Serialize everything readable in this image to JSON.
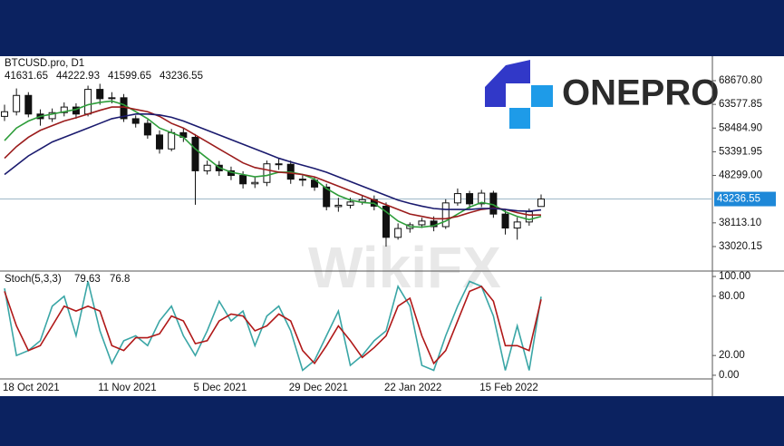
{
  "logo": "ONEPRO",
  "watermark": "WikiFX",
  "chart_data": [
    {
      "type": "candlestick",
      "title": "BTCUSD.pro, D1",
      "categories": [
        "18 Oct 2021",
        null,
        null,
        null,
        null,
        null,
        null,
        null,
        "11 Nov 2021",
        null,
        null,
        null,
        null,
        null,
        null,
        null,
        "5 Dec 2021",
        null,
        null,
        null,
        null,
        null,
        null,
        null,
        "29 Dec 2021",
        null,
        null,
        null,
        null,
        null,
        null,
        null,
        "22 Jan 2022",
        null,
        null,
        null,
        null,
        null,
        null,
        null,
        "15 Feb 2022",
        null,
        null,
        null,
        null,
        null
      ],
      "open": [
        61000,
        62000,
        65500,
        61500,
        60500,
        61800,
        63000,
        61500,
        66800,
        64800,
        65000,
        60500,
        59500,
        57000,
        54000,
        57500,
        56500,
        49300,
        50500,
        49300,
        48300,
        46500,
        46800,
        50800,
        50700,
        47500,
        47300,
        45800,
        41600,
        41900,
        42600,
        43100,
        41700,
        35000,
        36900,
        37700,
        38500,
        37300,
        42400,
        44400,
        42200,
        44500,
        40000,
        37000,
        38300,
        41631.65
      ],
      "high": [
        63500,
        67000,
        66200,
        62500,
        62700,
        64000,
        63800,
        67600,
        68000,
        66200,
        65800,
        61200,
        60300,
        58000,
        58300,
        58500,
        57200,
        51500,
        51400,
        50200,
        49200,
        48000,
        51500,
        52000,
        51500,
        48300,
        48000,
        46500,
        43500,
        43500,
        44000,
        44000,
        42500,
        38000,
        38200,
        39200,
        39500,
        43200,
        45500,
        45000,
        45200,
        45000,
        40800,
        39300,
        41200,
        44222.93
      ],
      "low": [
        60000,
        61200,
        60800,
        59000,
        59800,
        61000,
        60500,
        61000,
        63500,
        63800,
        59800,
        58600,
        56200,
        53000,
        53500,
        55500,
        42000,
        48500,
        48200,
        47300,
        45500,
        45600,
        46000,
        49500,
        46500,
        46000,
        45000,
        40800,
        40500,
        41200,
        42000,
        40800,
        33000,
        34500,
        36000,
        37000,
        36300,
        36800,
        41800,
        41200,
        41500,
        39200,
        35600,
        34500,
        37500,
        41599.65
      ],
      "close": [
        62000,
        65500,
        61500,
        60500,
        61800,
        63000,
        61500,
        66800,
        64800,
        65000,
        60500,
        59500,
        57000,
        54000,
        57500,
        56500,
        49300,
        50500,
        49300,
        48300,
        46500,
        46800,
        50800,
        50700,
        47500,
        47300,
        45800,
        41600,
        41900,
        42600,
        43100,
        41700,
        35000,
        36900,
        37700,
        38500,
        37300,
        42400,
        44400,
        42200,
        44500,
        40000,
        37000,
        38300,
        40500,
        43236.55
      ],
      "up_color": "#ffffff",
      "down_color": "#111111",
      "series": [
        {
          "color": "#2e9d3a",
          "values": [
            55800,
            58500,
            60000,
            61000,
            61500,
            62000,
            62500,
            63500,
            64000,
            64300,
            63500,
            62000,
            60500,
            58500,
            57500,
            56500,
            54000,
            52000,
            50000,
            49000,
            48500,
            48000,
            48300,
            49000,
            49000,
            48500,
            47500,
            45500,
            44000,
            43000,
            42500,
            42300,
            40500,
            38500,
            37300,
            37200,
            37500,
            38500,
            40000,
            41500,
            42500,
            42000,
            40500,
            39500,
            38800,
            39500
          ]
        },
        {
          "color": "#9b1c1c",
          "values": [
            52000,
            54500,
            56500,
            58000,
            59000,
            60000,
            60700,
            61500,
            62300,
            63000,
            63000,
            62500,
            62000,
            61000,
            59500,
            58500,
            57000,
            55500,
            54000,
            52500,
            51000,
            50000,
            49500,
            49000,
            48800,
            48500,
            48000,
            47000,
            46000,
            45000,
            44000,
            43000,
            42000,
            41000,
            40000,
            39500,
            39000,
            39000,
            39500,
            40300,
            41000,
            41300,
            41000,
            40300,
            39800,
            39800
          ]
        },
        {
          "color": "#1a1a6e",
          "values": [
            48500,
            50500,
            52500,
            54000,
            55500,
            56500,
            57500,
            58500,
            59500,
            60500,
            61000,
            61500,
            61500,
            61300,
            60800,
            60000,
            59000,
            58000,
            57000,
            56000,
            55000,
            54000,
            53000,
            52000,
            51200,
            50500,
            49800,
            49000,
            48000,
            47000,
            46000,
            45000,
            44000,
            43000,
            42300,
            41700,
            41200,
            41000,
            41000,
            41000,
            41200,
            41200,
            41000,
            40700,
            40600,
            40900
          ]
        }
      ],
      "ylim": [
        27950,
        73930
      ],
      "yticks": [
        33020.15,
        {
          "value": 38113.1,
          "label": "38113.10"
        },
        {
          "value": 48299,
          "label": "48299.00"
        },
        53391.95,
        {
          "value": 58484.9,
          "label": "58484.90"
        },
        63577.85,
        {
          "value": 68670.8,
          "label": "68670.80"
        }
      ]
    },
    {
      "type": "line",
      "title": "Stoch(5,3,3)",
      "series": [
        {
          "color": "#3aa6a6",
          "values": [
            88,
            20,
            25,
            35,
            70,
            80,
            40,
            95,
            45,
            12,
            35,
            40,
            30,
            55,
            70,
            40,
            20,
            45,
            75,
            55,
            65,
            30,
            60,
            70,
            45,
            5,
            15,
            40,
            65,
            10,
            20,
            35,
            45,
            90,
            70,
            10,
            5,
            40,
            70,
            95,
            90,
            60,
            5,
            50,
            5,
            79.63
          ]
        },
        {
          "color": "#b01818",
          "values": [
            85,
            50,
            25,
            30,
            50,
            70,
            65,
            70,
            65,
            30,
            25,
            38,
            38,
            42,
            60,
            55,
            32,
            35,
            55,
            62,
            60,
            45,
            50,
            62,
            55,
            25,
            12,
            30,
            50,
            35,
            18,
            28,
            40,
            70,
            78,
            40,
            12,
            25,
            55,
            85,
            90,
            75,
            30,
            30,
            25,
            76.8
          ]
        }
      ],
      "ylim": [
        -3.7,
        104.6
      ],
      "yticks": [
        {
          "value": 0,
          "label": "0.00"
        },
        {
          "value": 20,
          "label": "20.00"
        },
        {
          "value": 80,
          "label": "80.00"
        },
        {
          "value": 100,
          "label": "100.00"
        }
      ]
    }
  ]
}
